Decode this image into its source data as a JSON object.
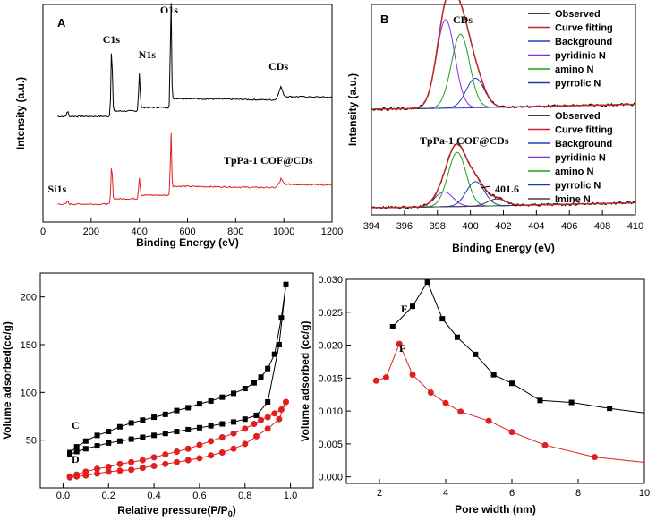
{
  "chart_data": [
    {
      "panel": "A",
      "type": "line",
      "xlabel": "Binding Energy (eV)",
      "ylabel": "Intensity (a.u.)",
      "xlim": [
        0,
        1200
      ],
      "xticks": [
        0,
        200,
        400,
        600,
        800,
        1000,
        1200
      ],
      "colors": {
        "upper": "#000000",
        "lower": "#e02020"
      },
      "peak_labels": [
        {
          "label": "C1s",
          "x": 285
        },
        {
          "label": "N1s",
          "x": 400
        },
        {
          "label": "O1s",
          "x": 531
        },
        {
          "label": "CDs",
          "x": 985
        },
        {
          "label": "Si1s",
          "x": 102
        }
      ],
      "series_labels": [
        "TpPa-1 COF@CDs"
      ]
    },
    {
      "panel": "B",
      "type": "line",
      "xlabel": "Binding Energy (eV)",
      "ylabel": "Intensity (a.u.)",
      "xlim": [
        394,
        410
      ],
      "xticks": [
        394,
        396,
        398,
        400,
        402,
        404,
        406,
        408,
        410
      ],
      "subplot_titles": [
        "CDs",
        "TpPa-1 COF@CDs"
      ],
      "annotation": "401.6",
      "legend_upper": [
        "Observed",
        "Curve fitting",
        "Background",
        "pyridinic N",
        "amino N",
        "pyrrolic N"
      ],
      "legend_lower": [
        "Observed",
        "Curve fitting",
        "Background",
        "pyridinic N",
        "amino N",
        "pyrrolic N",
        "Imine N"
      ],
      "legend_colors": [
        "#000000",
        "#c0282a",
        "#2040c0",
        "#8a2be2",
        "#1aa01a",
        "#203aa0",
        "#404040"
      ],
      "peaks_upper": [
        {
          "name": "pyridinic N",
          "center": 398.5,
          "height": 0.6
        },
        {
          "name": "amino N",
          "center": 399.4,
          "height": 0.5
        },
        {
          "name": "pyrrolic N",
          "center": 400.3,
          "height": 0.2
        }
      ],
      "peaks_lower": [
        {
          "name": "pyridinic N",
          "center": 398.4,
          "height": 0.15
        },
        {
          "name": "amino N",
          "center": 399.2,
          "height": 0.55
        },
        {
          "name": "pyrrolic N",
          "center": 400.3,
          "height": 0.25
        },
        {
          "name": "Imine N",
          "center": 401.6,
          "height": 0.07
        }
      ]
    },
    {
      "panel": "C/D",
      "type": "line",
      "xlabel": "Relative pressure(P/P",
      "xlabel_sub": "0",
      "xlabel_end": ")",
      "ylabel": "Volume adsorbed(cc/g)",
      "xlim": [
        -0.1,
        1.1
      ],
      "ylim": [
        0,
        225
      ],
      "xticks": [
        "0.0",
        "0.2",
        "0.4",
        "0.6",
        "0.8",
        "1.0"
      ],
      "yticks": [
        "50",
        "100",
        "150",
        "200"
      ],
      "series": [
        {
          "name": "C",
          "color": "#000000",
          "marker": "square",
          "adsorption": [
            [
              0.03,
              35
            ],
            [
              0.06,
              38
            ],
            [
              0.1,
              41
            ],
            [
              0.15,
              44
            ],
            [
              0.2,
              47
            ],
            [
              0.25,
              49
            ],
            [
              0.3,
              51
            ],
            [
              0.35,
              53
            ],
            [
              0.4,
              55
            ],
            [
              0.45,
              57
            ],
            [
              0.5,
              59
            ],
            [
              0.55,
              61
            ],
            [
              0.6,
              63
            ],
            [
              0.65,
              65
            ],
            [
              0.7,
              67
            ],
            [
              0.75,
              69
            ],
            [
              0.8,
              72
            ],
            [
              0.85,
              76
            ],
            [
              0.9,
              90
            ],
            [
              0.95,
              150
            ],
            [
              0.98,
              213
            ]
          ],
          "desorption": [
            [
              0.98,
              213
            ],
            [
              0.96,
              178
            ],
            [
              0.93,
              140
            ],
            [
              0.9,
              125
            ],
            [
              0.87,
              116
            ],
            [
              0.84,
              110
            ],
            [
              0.8,
              104
            ],
            [
              0.75,
              99
            ],
            [
              0.7,
              95
            ],
            [
              0.65,
              91
            ],
            [
              0.6,
              88
            ],
            [
              0.55,
              84
            ],
            [
              0.5,
              81
            ],
            [
              0.45,
              77
            ],
            [
              0.4,
              74
            ],
            [
              0.35,
              71
            ],
            [
              0.3,
              68
            ],
            [
              0.25,
              64
            ],
            [
              0.2,
              59
            ],
            [
              0.15,
              55
            ],
            [
              0.1,
              49
            ],
            [
              0.06,
              43
            ],
            [
              0.03,
              37
            ]
          ]
        },
        {
          "name": "D",
          "color": "#e02020",
          "marker": "circle",
          "adsorption": [
            [
              0.03,
              11
            ],
            [
              0.06,
              12
            ],
            [
              0.1,
              13
            ],
            [
              0.15,
              15
            ],
            [
              0.2,
              17
            ],
            [
              0.25,
              18
            ],
            [
              0.3,
              19
            ],
            [
              0.35,
              21
            ],
            [
              0.4,
              23
            ],
            [
              0.45,
              25
            ],
            [
              0.5,
              27
            ],
            [
              0.55,
              29
            ],
            [
              0.6,
              31
            ],
            [
              0.65,
              34
            ],
            [
              0.7,
              37
            ],
            [
              0.75,
              41
            ],
            [
              0.8,
              46
            ],
            [
              0.85,
              54
            ],
            [
              0.9,
              62
            ],
            [
              0.95,
              72
            ],
            [
              0.98,
              90
            ]
          ],
          "desorption": [
            [
              0.98,
              90
            ],
            [
              0.96,
              82
            ],
            [
              0.93,
              78
            ],
            [
              0.9,
              74
            ],
            [
              0.87,
              71
            ],
            [
              0.84,
              67
            ],
            [
              0.8,
              62
            ],
            [
              0.75,
              57
            ],
            [
              0.7,
              53
            ],
            [
              0.65,
              49
            ],
            [
              0.6,
              45
            ],
            [
              0.55,
              41
            ],
            [
              0.5,
              38
            ],
            [
              0.45,
              35
            ],
            [
              0.4,
              32
            ],
            [
              0.35,
              29
            ],
            [
              0.3,
              27
            ],
            [
              0.25,
              25
            ],
            [
              0.2,
              22
            ],
            [
              0.15,
              20
            ],
            [
              0.1,
              17
            ],
            [
              0.06,
              14
            ],
            [
              0.03,
              12
            ]
          ]
        }
      ]
    },
    {
      "panel": "E/F",
      "type": "line",
      "xlabel": "Pore width (nm)",
      "ylabel": "Volume adsorbed (cc/g)",
      "xlim": [
        1,
        10
      ],
      "ylim": [
        -0.001,
        0.03
      ],
      "xticks": [
        "2",
        "4",
        "6",
        "8",
        "10"
      ],
      "yticks": [
        "0.000",
        "0.005",
        "0.010",
        "0.015",
        "0.020",
        "0.025",
        "0.030"
      ],
      "series": [
        {
          "name": "E",
          "color": "#000000",
          "marker": "square",
          "points": [
            [
              2.4,
              0.0228
            ],
            [
              3.0,
              0.0259
            ],
            [
              3.45,
              0.0296
            ],
            [
              3.9,
              0.024
            ],
            [
              4.35,
              0.0212
            ],
            [
              4.9,
              0.0186
            ],
            [
              5.45,
              0.0155
            ],
            [
              6.0,
              0.0142
            ],
            [
              6.85,
              0.0116
            ],
            [
              7.8,
              0.0113
            ],
            [
              8.95,
              0.0104
            ],
            [
              10,
              0.0097
            ]
          ]
        },
        {
          "name": "F",
          "color": "#e02020",
          "marker": "circle",
          "points": [
            [
              1.9,
              0.0146
            ],
            [
              2.2,
              0.0151
            ],
            [
              2.6,
              0.0202
            ],
            [
              3.0,
              0.0155
            ],
            [
              3.55,
              0.0128
            ],
            [
              4.0,
              0.0112
            ],
            [
              4.45,
              0.0099
            ],
            [
              5.3,
              0.0085
            ],
            [
              6.0,
              0.0068
            ],
            [
              7.0,
              0.0048
            ],
            [
              8.5,
              0.003
            ],
            [
              10,
              0.0022
            ]
          ]
        }
      ]
    }
  ]
}
